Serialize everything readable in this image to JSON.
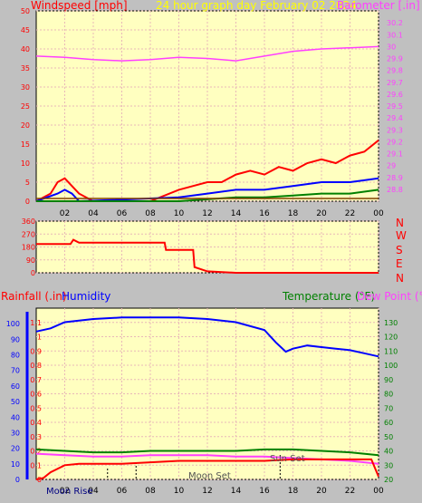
{
  "colors": {
    "page_bg": "#c0c0c0",
    "plot_bg": "#ffffc0",
    "grid": "#e8b8b8",
    "wind": "#ff0000",
    "wind_avg": "#0000ff",
    "wind_low": "#008000",
    "baro": "#ff40ff",
    "date": "#ffff00",
    "rain": "#ff0000",
    "humidity": "#0000ff",
    "temperature": "#008000",
    "dew_point": "#ff40ff",
    "astro": "#000080"
  },
  "header": {
    "left": "Windspeed [mph]",
    "center": "24 hour graph day   February 02 2024",
    "right": "Barometer [.in]"
  },
  "panel3_header": {
    "rain": "Rainfall (.in)",
    "humidity": "Humidity",
    "temperature": "Temperature (°F)",
    "dew_point": "Dew Point (°F)"
  },
  "direction_letters": [
    "N",
    "W",
    "S",
    "E",
    "N"
  ],
  "astro_labels": {
    "moon_rise": "Moon Rise",
    "moon_set": "Moon Set",
    "sun_set": "Sun Set"
  },
  "chart_data": [
    {
      "type": "line",
      "id": "wind-baro",
      "x_ticks": [
        "02",
        "04",
        "06",
        "08",
        "10",
        "12",
        "14",
        "16",
        "18",
        "20",
        "22",
        "00"
      ],
      "xlim": [
        0,
        24
      ],
      "y_left": {
        "label": "Windspeed [mph]",
        "ylim": [
          0,
          50
        ],
        "ticks": [
          "0",
          "5",
          "10",
          "15",
          "20",
          "25",
          "30",
          "35",
          "40",
          "45",
          "50"
        ]
      },
      "y_right": {
        "label": "Barometer [.in]",
        "ylim": [
          28.7,
          30.3
        ],
        "ticks": [
          "28.8",
          "28.9",
          "29",
          "29.1",
          "29.2",
          "29.3",
          "29.4",
          "29.5",
          "29.6",
          "29.7",
          "29.8",
          "29.9",
          "30",
          "30.1",
          "30.2"
        ]
      },
      "series": [
        {
          "name": "Barometer [.in]",
          "axis": "right",
          "x": [
            0,
            2,
            4,
            6,
            8,
            10,
            12,
            14,
            16,
            18,
            20,
            22,
            24
          ],
          "y": [
            29.92,
            29.91,
            29.89,
            29.88,
            29.89,
            29.91,
            29.9,
            29.88,
            29.92,
            29.96,
            29.98,
            29.99,
            30.0
          ]
        },
        {
          "axis": "left",
          "role": "gust",
          "x": [
            0,
            1,
            1.5,
            2,
            2.5,
            3,
            4,
            6,
            8,
            10,
            11,
            12,
            13,
            14,
            15,
            16,
            17,
            18,
            19,
            20,
            21,
            22,
            23,
            24
          ],
          "y": [
            0,
            2,
            5,
            6,
            4,
            2,
            0,
            0,
            0,
            3,
            4,
            5,
            5,
            7,
            8,
            7,
            9,
            8,
            10,
            11,
            10,
            12,
            13,
            16
          ]
        },
        {
          "axis": "left",
          "role": "average",
          "x": [
            0,
            1.5,
            2,
            2.5,
            3,
            10,
            12,
            14,
            16,
            18,
            20,
            22,
            24
          ],
          "y": [
            0,
            2,
            3,
            2,
            0,
            1,
            2,
            3,
            3,
            4,
            5,
            5,
            6
          ]
        },
        {
          "axis": "left",
          "role": "low",
          "x": [
            0,
            10,
            12,
            14,
            16,
            18,
            20,
            22,
            24
          ],
          "y": [
            0,
            0,
            0.5,
            1,
            1,
            1.5,
            2,
            2,
            3
          ]
        }
      ]
    },
    {
      "type": "line",
      "id": "wind-direction",
      "x_ticks": [
        "02",
        "04",
        "06",
        "08",
        "10",
        "12",
        "14",
        "16",
        "18",
        "20",
        "22",
        "00"
      ],
      "xlim": [
        0,
        24
      ],
      "ylim": [
        0,
        360
      ],
      "y_ticks": [
        "0",
        "90",
        "180",
        "270",
        "360"
      ],
      "series": [
        {
          "x": [
            0,
            2.4,
            2.6,
            3,
            9,
            9.1,
            11,
            11.1,
            12,
            14,
            14.2,
            24
          ],
          "y": [
            200,
            200,
            230,
            210,
            210,
            160,
            160,
            40,
            10,
            0,
            0,
            0
          ]
        }
      ]
    },
    {
      "type": "line",
      "id": "rain-humidity-temp",
      "x_ticks": [
        "02",
        "04",
        "06",
        "08",
        "10",
        "12",
        "14",
        "16",
        "18",
        "20",
        "22",
        "00"
      ],
      "xlim": [
        0,
        24
      ],
      "y_rain": {
        "label": "Rainfall (.in)",
        "ylim": [
          0,
          1.2
        ],
        "ticks": [
          "0",
          "0.1",
          "0.2",
          "0.3",
          "0.4",
          "0.5",
          "0.6",
          "0.7",
          "0.8",
          "0.9",
          "1",
          "1.1"
        ]
      },
      "y_humidity": {
        "label": "Humidity",
        "ylim": [
          0,
          110
        ],
        "ticks": [
          "0",
          "10",
          "20",
          "30",
          "40",
          "50",
          "60",
          "70",
          "80",
          "90",
          "100"
        ]
      },
      "y_temp": {
        "label": "Temperature (°F)",
        "ylim": [
          20,
          140
        ],
        "ticks": [
          "20",
          "30",
          "40",
          "50",
          "60",
          "70",
          "80",
          "90",
          "100",
          "110",
          "120",
          "130"
        ]
      },
      "series": [
        {
          "name": "Humidity",
          "axis": "humidity",
          "x": [
            0,
            1,
            2,
            4,
            6,
            8,
            10,
            12,
            14,
            16,
            16.8,
            17.5,
            18,
            19,
            20,
            21,
            22,
            23,
            24
          ],
          "y": [
            95,
            97,
            101,
            103,
            104,
            104,
            104,
            103,
            101,
            96,
            88,
            82,
            84,
            86,
            85,
            84,
            83,
            81,
            79
          ]
        },
        {
          "name": "Temperature (°F)",
          "axis": "temp",
          "x": [
            0,
            2,
            4,
            6,
            8,
            10,
            12,
            14,
            16,
            18,
            20,
            22,
            24
          ],
          "y": [
            41,
            40,
            39,
            39,
            40,
            40,
            40,
            40,
            41,
            41,
            40,
            39,
            37
          ]
        },
        {
          "name": "Dew Point (°F)",
          "axis": "temp",
          "x": [
            0,
            2,
            4,
            6,
            8,
            10,
            12,
            14,
            16,
            18,
            20,
            22,
            24
          ],
          "y": [
            38,
            37,
            36,
            36,
            37,
            37,
            37,
            36,
            36,
            35,
            34,
            33,
            31
          ]
        },
        {
          "name": "Rainfall (.in)",
          "axis": "rain",
          "x": [
            0,
            0.5,
            1,
            2,
            3,
            6,
            8,
            10,
            12,
            16,
            18,
            20,
            22,
            23.5,
            24
          ],
          "y": [
            0,
            0.01,
            0.05,
            0.1,
            0.11,
            0.11,
            0.12,
            0.13,
            0.13,
            0.13,
            0.14,
            0.14,
            0.14,
            0.14,
            0.02
          ]
        }
      ]
    }
  ]
}
